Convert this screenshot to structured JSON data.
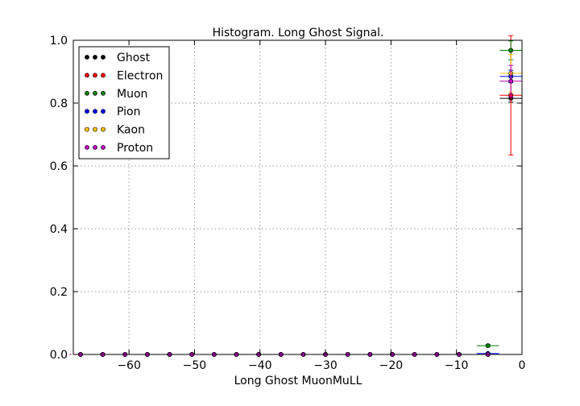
{
  "chart_data": {
    "type": "scatter",
    "title": "Histogram. Long Ghost Signal.",
    "xlabel": "Long Ghost MuonMuLL",
    "ylabel": "",
    "xlim": [
      -68.5,
      0
    ],
    "ylim": [
      0,
      1.0
    ],
    "xticks": [
      -60,
      -50,
      -40,
      -30,
      -20,
      -10,
      0
    ],
    "xtick_labels": [
      "−60",
      "−50",
      "−40",
      "−30",
      "−20",
      "−10",
      "0"
    ],
    "yticks": [
      0.0,
      0.2,
      0.4,
      0.6,
      0.8,
      1.0
    ],
    "ytick_labels": [
      "0.0",
      "0.2",
      "0.4",
      "0.6",
      "0.8",
      "1.0"
    ],
    "grid": true,
    "legend_position": "top-left",
    "x": [
      -67.4,
      -64.0,
      -60.6,
      -57.2,
      -53.8,
      -50.4,
      -47.0,
      -43.6,
      -40.2,
      -36.8,
      -33.4,
      -30.0,
      -26.6,
      -23.2,
      -19.8,
      -16.4,
      -13.0,
      -9.6,
      -5.2,
      -1.7
    ],
    "x_halfwidth": 1.7,
    "series": [
      {
        "name": "Ghost",
        "color": "#000000",
        "values": [
          0,
          0,
          0,
          0,
          0,
          0,
          0,
          0,
          0,
          0,
          0,
          0,
          0,
          0,
          0,
          0,
          0,
          0,
          0.0,
          0.815
        ],
        "yerr": [
          0,
          0,
          0,
          0,
          0,
          0,
          0,
          0,
          0,
          0,
          0,
          0,
          0,
          0,
          0,
          0,
          0,
          0,
          0,
          0.012
        ]
      },
      {
        "name": "Electron",
        "color": "#ff0000",
        "values": [
          0,
          0,
          0,
          0,
          0,
          0,
          0,
          0,
          0,
          0,
          0,
          0,
          0,
          0,
          0,
          0,
          0,
          0,
          0.0,
          0.825
        ],
        "yerr": [
          0,
          0,
          0,
          0,
          0,
          0,
          0,
          0,
          0,
          0,
          0,
          0,
          0,
          0,
          0,
          0,
          0,
          0,
          0,
          0.19
        ]
      },
      {
        "name": "Muon",
        "color": "#007f00",
        "values": [
          0,
          0,
          0,
          0,
          0,
          0,
          0,
          0,
          0,
          0,
          0,
          0,
          0,
          0,
          0,
          0,
          0,
          0,
          0.028,
          0.968
        ],
        "yerr": [
          0,
          0,
          0,
          0,
          0,
          0,
          0,
          0,
          0,
          0,
          0,
          0,
          0,
          0,
          0,
          0,
          0,
          0,
          0.004,
          0.03
        ]
      },
      {
        "name": "Pion",
        "color": "#0000ff",
        "values": [
          0,
          0,
          0,
          0,
          0,
          0,
          0,
          0,
          0,
          0,
          0,
          0,
          0,
          0,
          0,
          0,
          0,
          0,
          0.003,
          0.885
        ],
        "yerr": [
          0,
          0,
          0,
          0,
          0,
          0,
          0,
          0,
          0,
          0,
          0,
          0,
          0,
          0,
          0,
          0,
          0,
          0,
          0.002,
          0.02
        ]
      },
      {
        "name": "Kaon",
        "color": "#ffbf00",
        "values": [
          0,
          0,
          0,
          0,
          0,
          0,
          0,
          0,
          0,
          0,
          0,
          0,
          0,
          0,
          0,
          0,
          0,
          0,
          0.0,
          0.895
        ],
        "yerr": [
          0,
          0,
          0,
          0,
          0,
          0,
          0,
          0,
          0,
          0,
          0,
          0,
          0,
          0,
          0,
          0,
          0,
          0,
          0,
          0.06
        ]
      },
      {
        "name": "Proton",
        "color": "#bf00bf",
        "values": [
          0,
          0,
          0,
          0,
          0,
          0,
          0,
          0,
          0,
          0,
          0,
          0,
          0,
          0,
          0,
          0,
          0,
          0,
          0.0,
          0.87
        ],
        "yerr": [
          0,
          0,
          0,
          0,
          0,
          0,
          0,
          0,
          0,
          0,
          0,
          0,
          0,
          0,
          0,
          0,
          0,
          0,
          0,
          0.05
        ]
      }
    ]
  }
}
